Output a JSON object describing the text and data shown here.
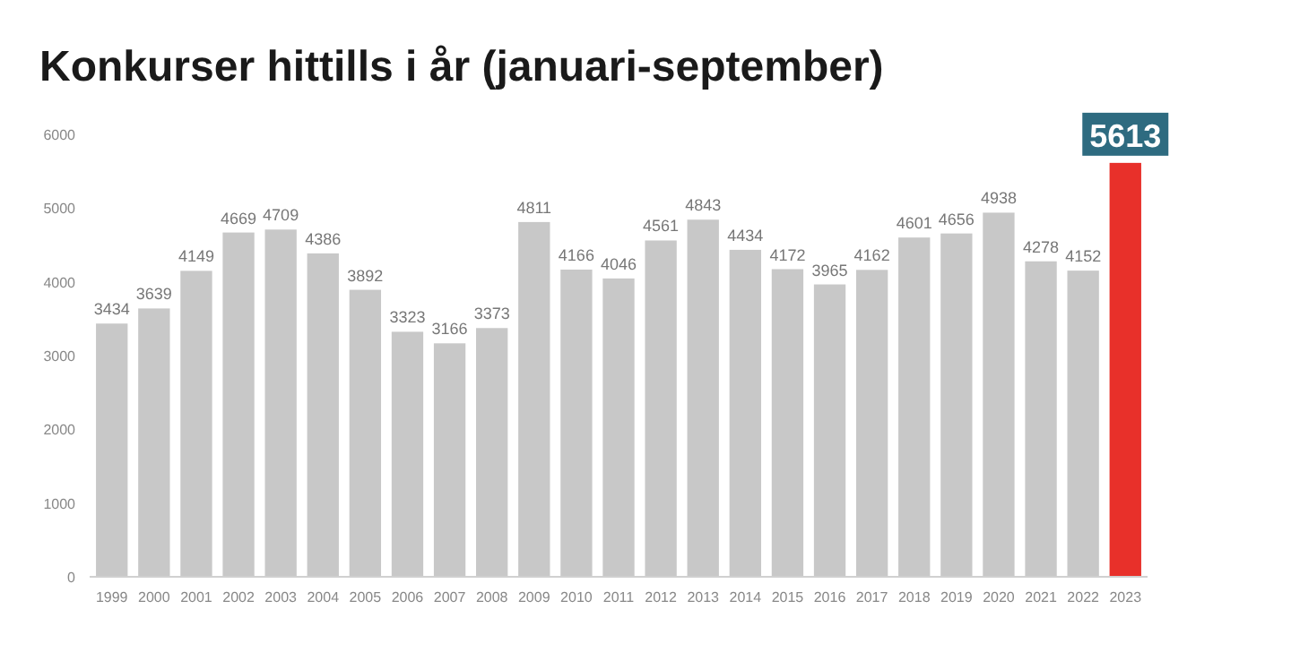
{
  "chart_data": {
    "type": "bar",
    "title": "Konkurser hittills i år (januari-september)",
    "categories": [
      "1999",
      "2000",
      "2001",
      "2002",
      "2003",
      "2004",
      "2005",
      "2006",
      "2007",
      "2008",
      "2009",
      "2010",
      "2011",
      "2012",
      "2013",
      "2014",
      "2015",
      "2016",
      "2017",
      "2018",
      "2019",
      "2020",
      "2021",
      "2022",
      "2023"
    ],
    "values": [
      3434,
      3639,
      4149,
      4669,
      4709,
      4386,
      3892,
      3323,
      3166,
      3373,
      4811,
      4166,
      4046,
      4561,
      4843,
      4434,
      4172,
      3965,
      4162,
      4601,
      4656,
      4938,
      4278,
      4152,
      5613
    ],
    "colors": [
      "#c8c8c8",
      "#c8c8c8",
      "#c8c8c8",
      "#c8c8c8",
      "#c8c8c8",
      "#c8c8c8",
      "#c8c8c8",
      "#c8c8c8",
      "#c8c8c8",
      "#c8c8c8",
      "#c8c8c8",
      "#c8c8c8",
      "#c8c8c8",
      "#c8c8c8",
      "#c8c8c8",
      "#c8c8c8",
      "#c8c8c8",
      "#c8c8c8",
      "#c8c8c8",
      "#c8c8c8",
      "#c8c8c8",
      "#c8c8c8",
      "#c8c8c8",
      "#c8c8c8",
      "#e8302a"
    ],
    "ylim": [
      0,
      6000
    ],
    "yticks": [
      0,
      1000,
      2000,
      3000,
      4000,
      5000,
      6000
    ],
    "grid": false,
    "data_labels": true
  }
}
